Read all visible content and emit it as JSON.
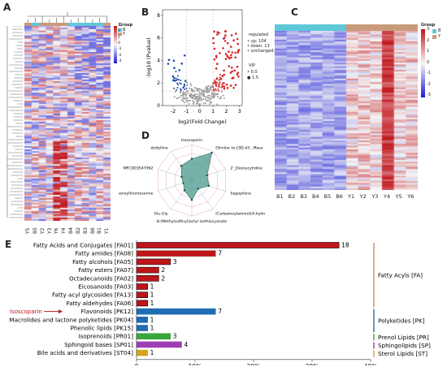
{
  "panels": {
    "a": "A",
    "b": "B",
    "c": "C",
    "d": "D",
    "e": "E"
  },
  "colors": {
    "up": "#d62728",
    "down": "#1f4ea8",
    "unchanged": "#9a9a9a",
    "group_b": "#5ec8d8",
    "group_y": "#c89b7b"
  },
  "heatmap_a": {
    "columns": [
      "Y5",
      "B5",
      "Y2",
      "Y3",
      "Y6",
      "Y4",
      "B4",
      "B2",
      "B3",
      "B6",
      "B1",
      "Y1"
    ],
    "legend_title": "Group",
    "legend_ticks": [
      "3",
      "2",
      "1",
      "0",
      "-1",
      "-2",
      "-3"
    ],
    "group_items": [
      "B",
      "Y"
    ]
  },
  "heatmap_c": {
    "columns": [
      "B1",
      "B2",
      "B3",
      "B4",
      "B5",
      "B6",
      "Y1",
      "Y2",
      "Y3",
      "Y4",
      "Y5",
      "Y6"
    ],
    "legend_title": "Group",
    "group_items": [
      "B",
      "Y"
    ],
    "legend_ticks": [
      "3",
      "2",
      "1",
      "0",
      "-1",
      "-2",
      "-3"
    ]
  },
  "volcano": {
    "xlabel": "log2(Fold Change)",
    "ylabel": "-log10 (Pvalue)",
    "legend_title": "regulated",
    "legend_items": [
      "up: 104",
      "down: 13",
      "unchanged: 559"
    ],
    "vip_title": "VIP",
    "vip_items": [
      "0.0",
      "1.5"
    ],
    "x_ticks": [
      "-2",
      "-1",
      "0",
      "1",
      "2",
      "3"
    ],
    "y_ticks": [
      "0",
      "2",
      "4",
      "6",
      "8"
    ]
  },
  "radar": {
    "title": "[Similar to:LSD-d3...Mass: 17.9509 Da]",
    "labels": [
      "Isoscoparin",
      "[Similar to:LSD-d3...Mass: 17.9509 Da]",
      "2'_Deoxycytidine",
      "Sagopilone",
      "[Carbamoylamino](4-hydroxyphenyl)acetic acid",
      "8-(Methylsulfinyl)octyl isothiocyanate",
      "Glu-Gly",
      "0-(3-Carboxypropanoyl)homoserine",
      "MFCD03547962",
      "etofylline"
    ],
    "values": [
      0.6,
      0.95,
      0.45,
      0.5,
      0.3,
      0.55,
      0.35,
      0.25,
      0.3,
      0.5
    ]
  },
  "chart_data": {
    "type": "bar",
    "categories": [
      "Fatty Acids and Conjugates [FA01]",
      "Fatty amides [FA08]",
      "Fatty alcohols [FA05]",
      "Fatty esters [FA07]",
      "Octadecanoids [FA02]",
      "Eicosanoids [FA03]",
      "Fatty acyl glycosides [FA13]",
      "Fatty aldehydes [FA06]",
      "Flavonoids [PK12]",
      "Macrolides and lactone polyketides [PK04]",
      "Phenolic lipids [PK15]",
      "Isoprenoids [PR01]",
      "Sphingoid bases [SP01]",
      "Bile acids and derivatives [ST04]"
    ],
    "values": [
      18,
      7,
      3,
      2,
      2,
      1,
      1,
      1,
      7,
      1,
      1,
      3,
      4,
      1
    ],
    "percent": [
      34.6,
      13.5,
      5.8,
      3.8,
      3.8,
      1.9,
      1.9,
      1.9,
      13.5,
      1.9,
      1.9,
      5.8,
      7.7,
      1.9
    ],
    "bar_colors": [
      "#c0141b",
      "#c0141b",
      "#c0141b",
      "#c0141b",
      "#c0141b",
      "#c0141b",
      "#c0141b",
      "#c0141b",
      "#1f6db3",
      "#1f6db3",
      "#1f6db3",
      "#3aa63a",
      "#9b3fb3",
      "#d6a21e"
    ],
    "bar_edge": [
      "#000",
      "#8a5a2a",
      "#000",
      "#000",
      "#000",
      "#000",
      "#000",
      "#000",
      "#1f6db3",
      "#1f6db3",
      "#1f6db3",
      "#3aa63a",
      "#9b3fb3",
      "#d6a21e"
    ],
    "x_ticks": [
      "0",
      "10%",
      "20%",
      "30%",
      "40%"
    ],
    "xlim": [
      0,
      40
    ],
    "groups": [
      {
        "label": "Fatty Acyls [FA]",
        "from": 0,
        "to": 7,
        "color": "#c8906a"
      },
      {
        "label": "Polyketides [PK]",
        "from": 8,
        "to": 10,
        "color": "#1f6db3"
      },
      {
        "label": "Prenol Lipids [PR]",
        "from": 11,
        "to": 11,
        "color": "#3aa63a"
      },
      {
        "label": "Sphingolipids [SP]",
        "from": 12,
        "to": 12,
        "color": "#9b3fb3"
      },
      {
        "label": "Sterol Lipids [ST]",
        "from": 13,
        "to": 13,
        "color": "#d6a21e"
      }
    ],
    "annotation": {
      "text": "Isoscoparin",
      "target_index": 8,
      "color": "#c0141b"
    }
  }
}
